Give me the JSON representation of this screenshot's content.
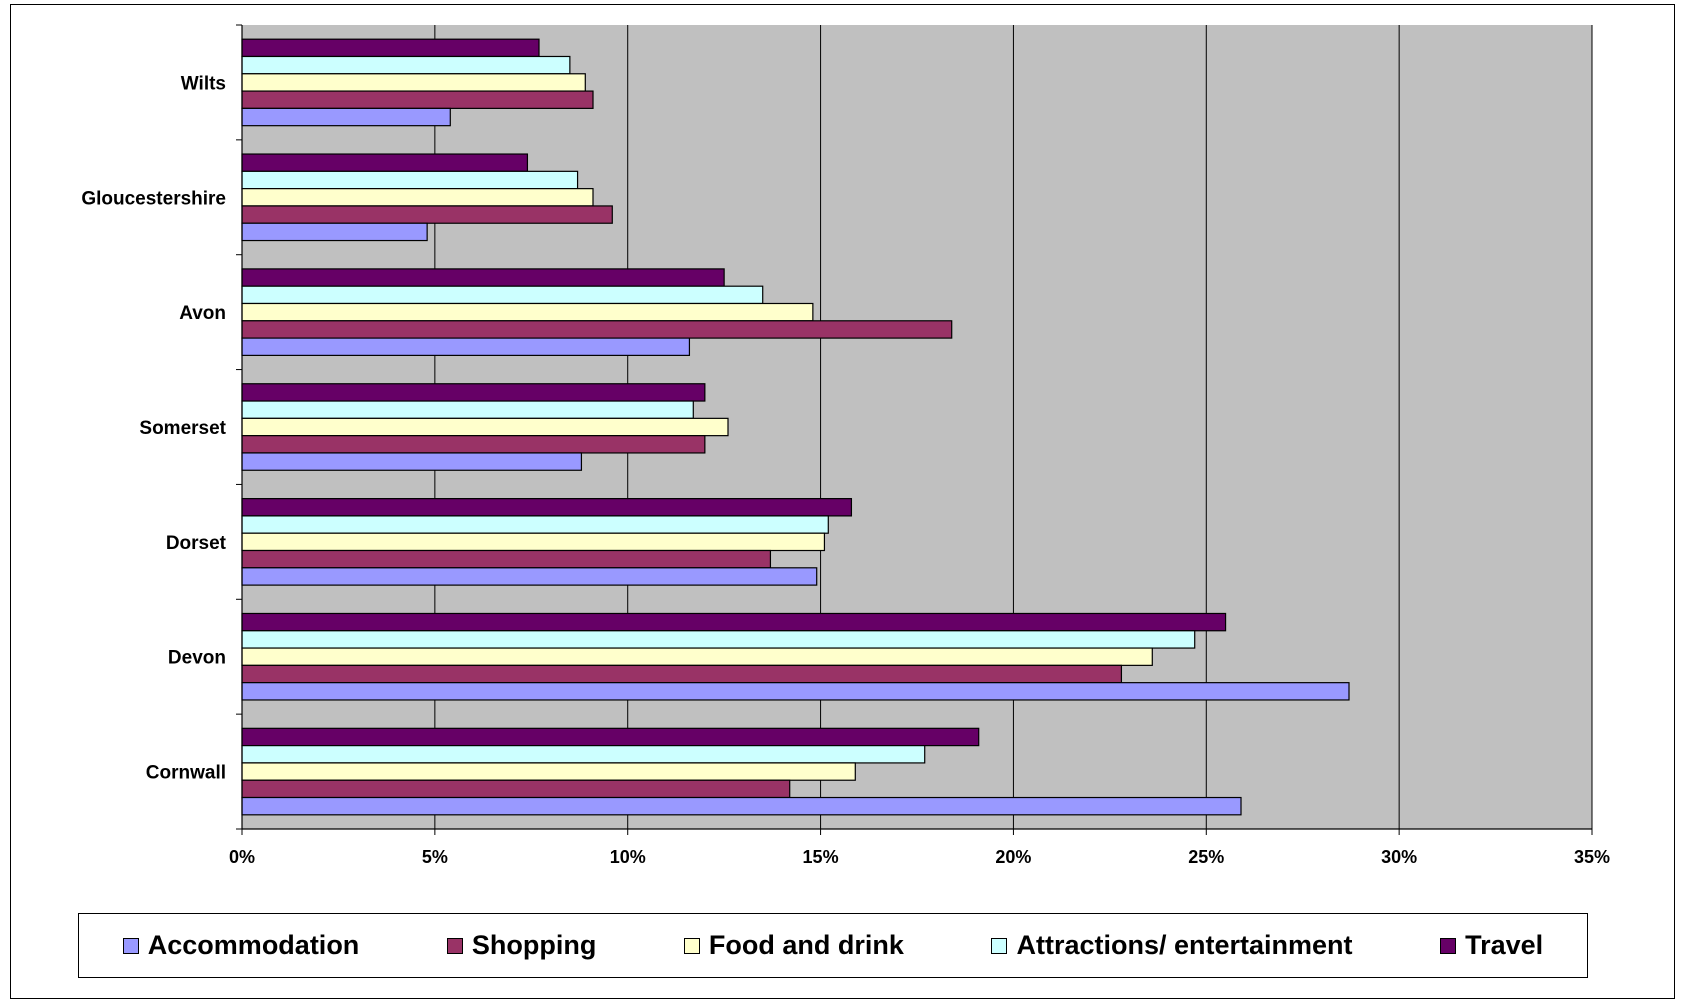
{
  "chart_data": {
    "type": "bar",
    "orientation": "horizontal",
    "title": "",
    "xlabel": "",
    "ylabel": "",
    "xlim": [
      0,
      35
    ],
    "x_ticks": [
      "0%",
      "5%",
      "10%",
      "15%",
      "20%",
      "25%",
      "30%",
      "35%"
    ],
    "grid": true,
    "legend_position": "bottom",
    "categories": [
      "Wilts",
      "Gloucestershire",
      "Avon",
      "Somerset",
      "Dorset",
      "Devon",
      "Cornwall"
    ],
    "series": [
      {
        "name": "Accommodation",
        "color": "#9999ff",
        "values": [
          5.4,
          4.8,
          11.6,
          8.8,
          14.9,
          28.7,
          25.9
        ]
      },
      {
        "name": "Shopping",
        "color": "#993366",
        "values": [
          9.1,
          9.6,
          18.4,
          12.0,
          13.7,
          22.8,
          14.2
        ]
      },
      {
        "name": "Food and drink",
        "color": "#ffffcc",
        "values": [
          8.9,
          9.1,
          14.8,
          12.6,
          15.1,
          23.6,
          15.9
        ]
      },
      {
        "name": "Attractions/ entertainment",
        "color": "#ccffff",
        "values": [
          8.5,
          8.7,
          13.5,
          11.7,
          15.2,
          24.7,
          17.7
        ]
      },
      {
        "name": "Travel",
        "color": "#660066",
        "values": [
          7.7,
          7.4,
          12.5,
          12.0,
          15.8,
          25.5,
          19.1
        ]
      }
    ],
    "plot_background": "#c0c0c0"
  }
}
